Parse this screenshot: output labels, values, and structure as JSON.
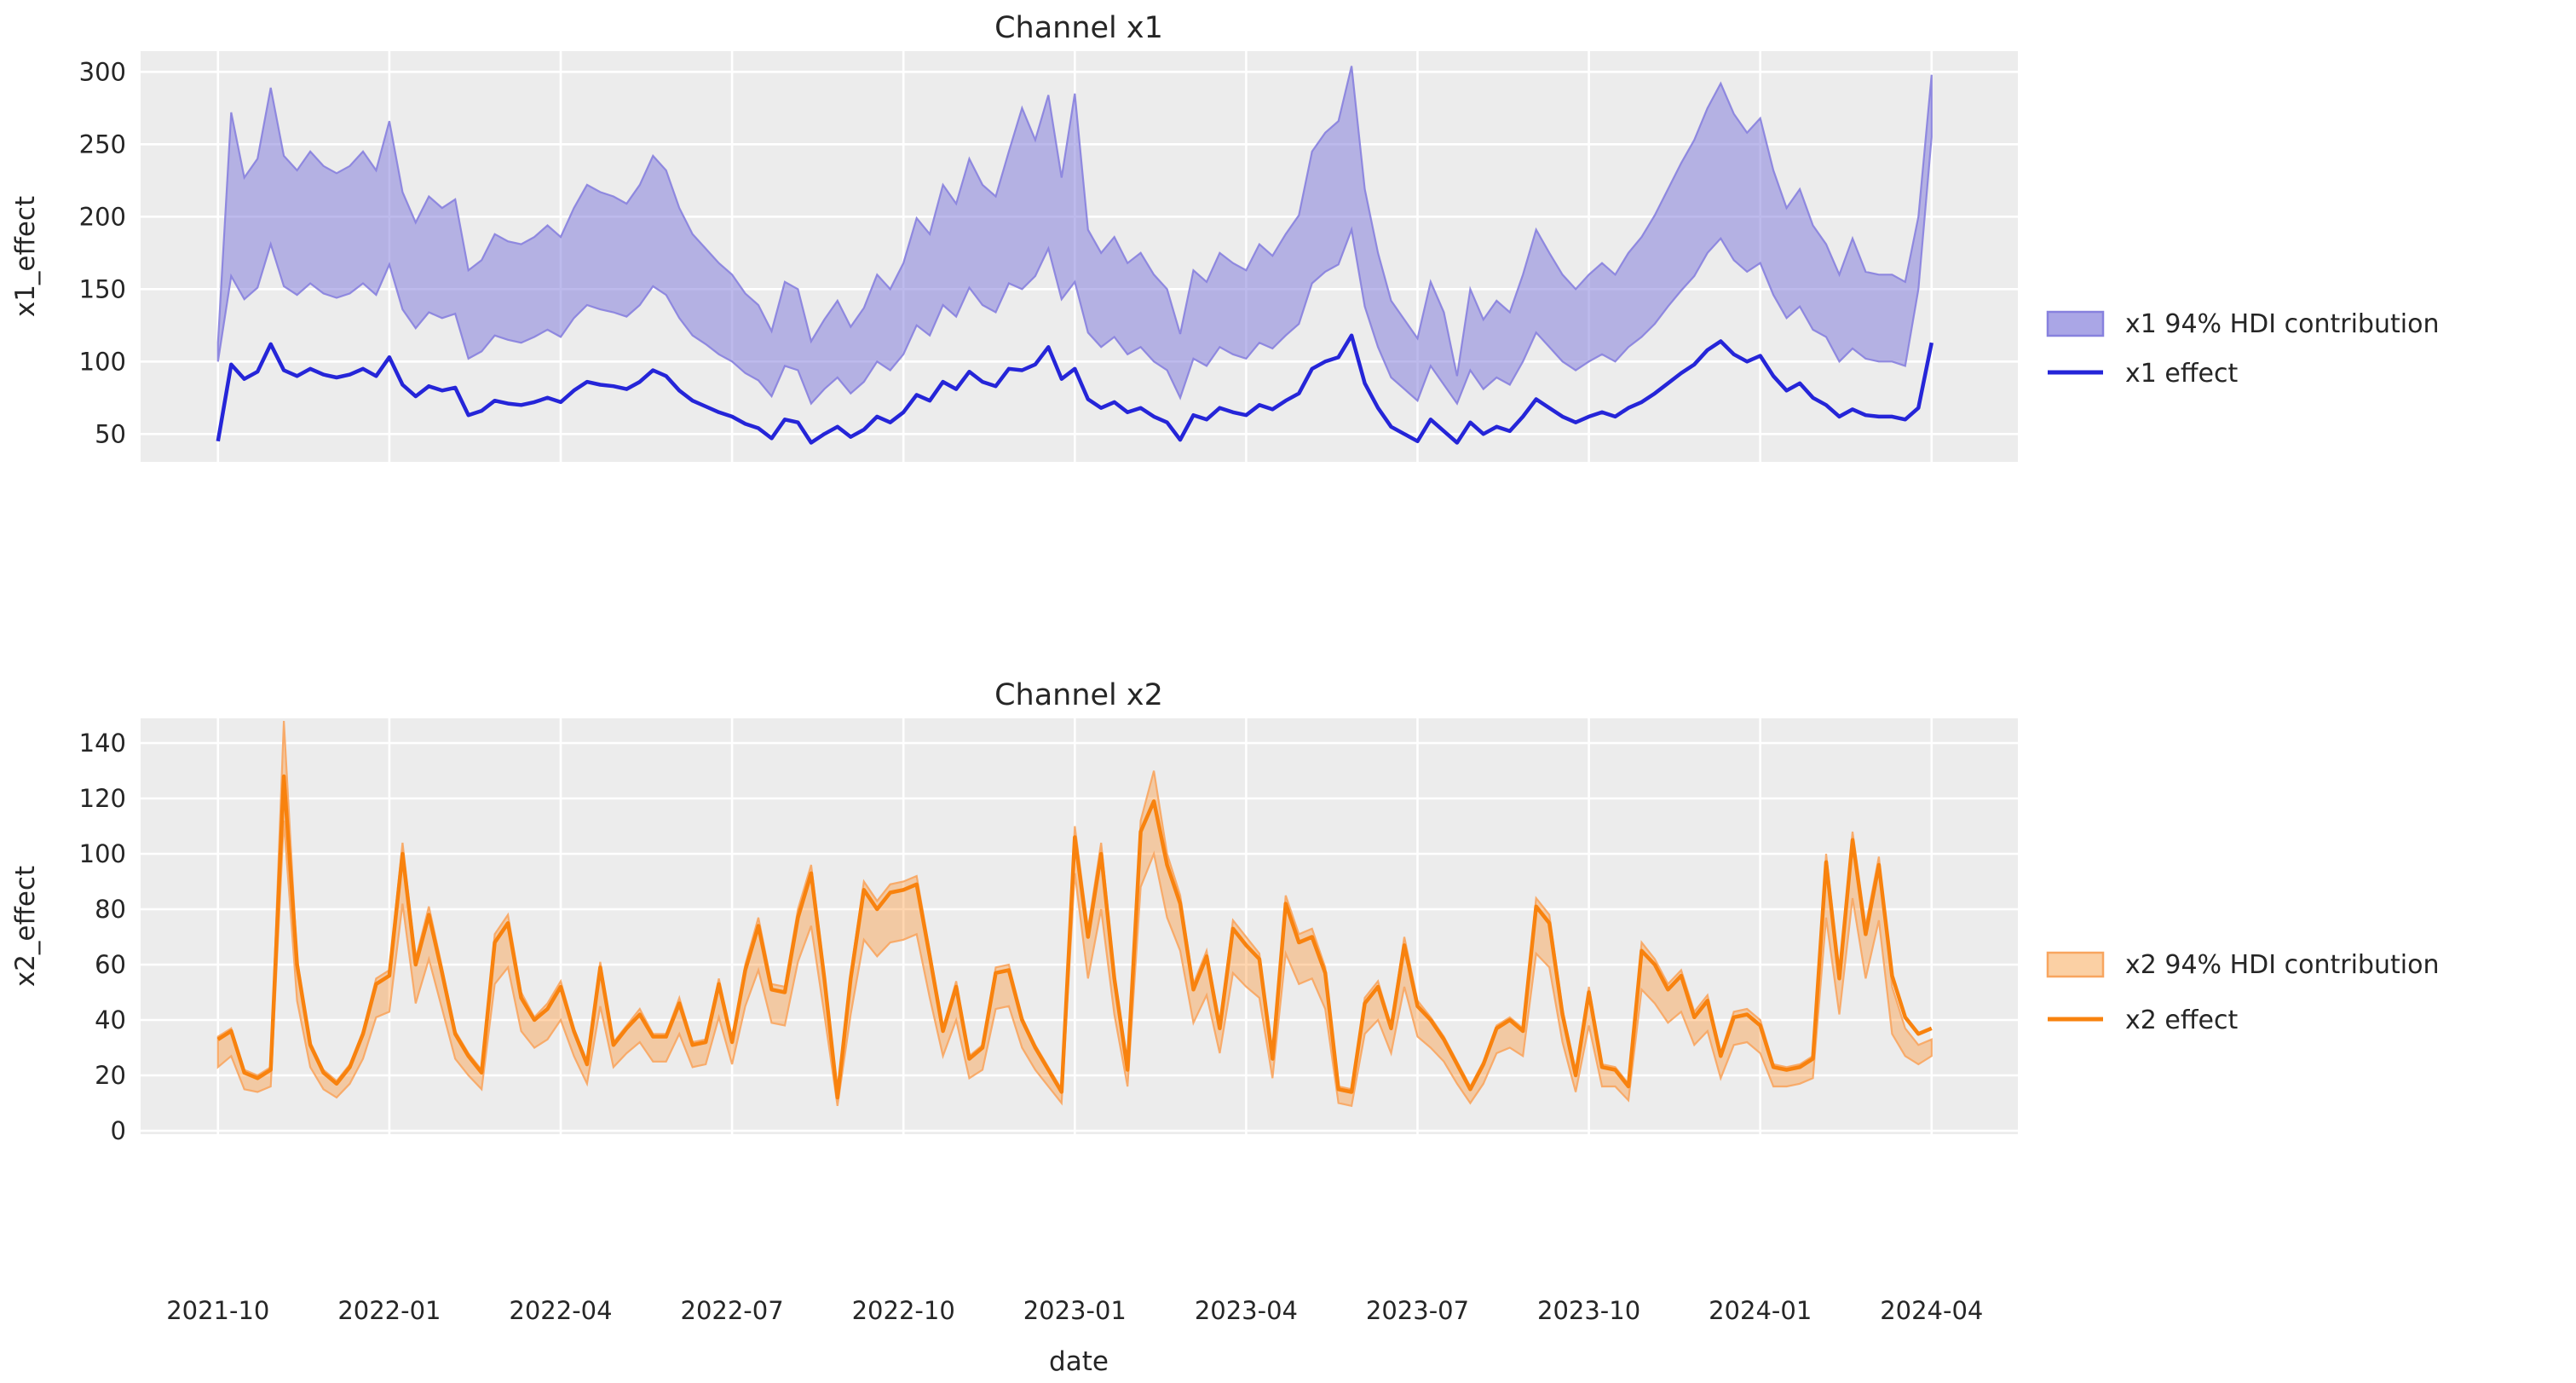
{
  "figure": {
    "background": "#ffffff",
    "axes_background": "#ececec",
    "grid_color": "#ffffff",
    "text_color": "#262626",
    "xlabel": "date"
  },
  "chart_data": [
    {
      "type": "line",
      "title": "Channel x1",
      "ylabel": "x1_effect",
      "xlabel": "date",
      "grid": true,
      "legend_position": "right-outside",
      "x": {
        "start": "2021-10-03",
        "step_days": 7,
        "n": 131
      },
      "x_tick_labels": [
        "2021-10",
        "2022-01",
        "2022-04",
        "2022-07",
        "2022-10",
        "2023-01",
        "2023-04",
        "2023-07",
        "2023-10",
        "2024-01",
        "2024-04"
      ],
      "yticks": [
        50,
        100,
        150,
        200,
        250,
        300
      ],
      "ylim": [
        31,
        314
      ],
      "series": [
        {
          "name": "x1 94% HDI contribution",
          "kind": "band",
          "fill_color": "#7c76d9",
          "fill_opacity": 0.5,
          "edge_color": "#8781de",
          "low": [
            100,
            159,
            143,
            151,
            181,
            152,
            146,
            154,
            147,
            144,
            147,
            154,
            146,
            167,
            136,
            123,
            134,
            130,
            133,
            102,
            107,
            118,
            115,
            113,
            117,
            122,
            117,
            130,
            139,
            136,
            134,
            131,
            139,
            152,
            146,
            130,
            118,
            112,
            105,
            100,
            92,
            87,
            76,
            97,
            94,
            71,
            81,
            89,
            78,
            86,
            100,
            94,
            105,
            125,
            118,
            139,
            131,
            151,
            139,
            134,
            154,
            150,
            159,
            178,
            143,
            155,
            120,
            110,
            117,
            105,
            110,
            100,
            94,
            75,
            102,
            97,
            110,
            105,
            102,
            113,
            109,
            118,
            126,
            154,
            162,
            167,
            191,
            138,
            110,
            89,
            81,
            73,
            97,
            84,
            71,
            94,
            81,
            89,
            84,
            100,
            120,
            110,
            100,
            94,
            100,
            105,
            100,
            110,
            117,
            126,
            138,
            149,
            159,
            175,
            185,
            170,
            162,
            168,
            146,
            130,
            138,
            122,
            117,
            100,
            109,
            102,
            100,
            100,
            97,
            150,
            255
          ],
          "high": [
            113,
            272,
            227,
            240,
            289,
            242,
            232,
            245,
            235,
            230,
            235,
            245,
            232,
            266,
            217,
            196,
            214,
            206,
            212,
            163,
            170,
            188,
            183,
            181,
            186,
            194,
            186,
            206,
            222,
            217,
            214,
            209,
            222,
            242,
            232,
            206,
            188,
            178,
            168,
            160,
            147,
            139,
            121,
            155,
            150,
            114,
            129,
            142,
            124,
            137,
            160,
            150,
            168,
            199,
            188,
            222,
            209,
            240,
            222,
            214,
            245,
            275,
            253,
            284,
            227,
            285,
            191,
            175,
            186,
            168,
            175,
            160,
            150,
            119,
            163,
            155,
            175,
            168,
            163,
            181,
            173,
            188,
            201,
            245,
            258,
            266,
            304,
            219,
            175,
            142,
            129,
            116,
            155,
            134,
            90,
            150,
            129,
            142,
            134,
            160,
            191,
            175,
            160,
            150,
            160,
            168,
            160,
            175,
            186,
            201,
            219,
            237,
            253,
            275,
            292,
            271,
            258,
            268,
            232,
            206,
            219,
            194,
            181,
            160,
            185,
            162,
            160,
            160,
            155,
            200,
            298
          ]
        },
        {
          "name": "x1 effect",
          "kind": "line",
          "color": "#2525d8",
          "values": [
            45,
            98,
            88,
            93,
            112,
            94,
            90,
            95,
            91,
            89,
            91,
            95,
            90,
            103,
            84,
            76,
            83,
            80,
            82,
            63,
            66,
            73,
            71,
            70,
            72,
            75,
            72,
            80,
            86,
            84,
            83,
            81,
            86,
            94,
            90,
            80,
            73,
            69,
            65,
            62,
            57,
            54,
            47,
            60,
            58,
            44,
            50,
            55,
            48,
            53,
            62,
            58,
            65,
            77,
            73,
            86,
            81,
            93,
            86,
            83,
            95,
            94,
            98,
            110,
            88,
            95,
            74,
            68,
            72,
            65,
            68,
            62,
            58,
            46,
            63,
            60,
            68,
            65,
            63,
            70,
            67,
            73,
            78,
            95,
            100,
            103,
            118,
            85,
            68,
            55,
            50,
            45,
            60,
            52,
            44,
            58,
            50,
            55,
            52,
            62,
            74,
            68,
            62,
            58,
            62,
            65,
            62,
            68,
            72,
            78,
            85,
            92,
            98,
            108,
            114,
            105,
            100,
            104,
            90,
            80,
            85,
            75,
            70,
            62,
            67,
            63,
            62,
            62,
            60,
            68,
            113
          ]
        }
      ]
    },
    {
      "type": "line",
      "title": "Channel x2",
      "ylabel": "x2_effect",
      "xlabel": "date",
      "grid": true,
      "legend_position": "right-outside",
      "x": {
        "start": "2021-10-03",
        "step_days": 7,
        "n": 131
      },
      "x_tick_labels": [
        "2021-10",
        "2022-01",
        "2022-04",
        "2022-07",
        "2022-10",
        "2023-01",
        "2023-04",
        "2023-07",
        "2023-10",
        "2024-01",
        "2024-04"
      ],
      "yticks": [
        0,
        20,
        40,
        60,
        80,
        100,
        120,
        140
      ],
      "ylim": [
        -1.5,
        149
      ],
      "series": [
        {
          "name": "x2 94% HDI contribution",
          "kind": "band",
          "fill_color": "#ff8a1e",
          "fill_opacity": 0.35,
          "edge_color": "#f8a55f",
          "low": [
            23,
            27,
            15,
            14,
            16,
            112,
            47,
            23,
            15,
            12,
            17,
            26,
            41,
            43,
            82,
            46,
            62,
            44,
            26,
            20,
            15,
            53,
            59,
            36,
            30,
            33,
            40,
            27,
            17,
            45,
            23,
            28,
            32,
            25,
            25,
            35,
            23,
            24,
            41,
            24,
            45,
            58,
            39,
            38,
            61,
            74,
            42,
            9,
            42,
            69,
            63,
            68,
            69,
            71,
            48,
            27,
            40,
            19,
            22,
            44,
            45,
            30,
            22,
            16,
            10,
            93,
            55,
            80,
            42,
            16,
            88,
            100,
            77,
            65,
            39,
            49,
            28,
            57,
            52,
            48,
            19,
            64,
            53,
            55,
            44,
            10,
            9,
            35,
            40,
            28,
            52,
            34,
            30,
            25,
            17,
            10,
            17,
            28,
            30,
            27,
            64,
            59,
            32,
            14,
            38,
            16,
            16,
            11,
            51,
            46,
            39,
            43,
            31,
            36,
            19,
            31,
            32,
            28,
            16,
            16,
            17,
            19,
            77,
            42,
            84,
            55,
            76,
            35,
            27,
            24,
            27
          ],
          "high": [
            34,
            37,
            22,
            20,
            23,
            148,
            62,
            32,
            22,
            18,
            24,
            36,
            55,
            58,
            104,
            62,
            81,
            59,
            36,
            28,
            22,
            71,
            78,
            50,
            41,
            46,
            54,
            37,
            25,
            61,
            32,
            38,
            44,
            35,
            35,
            48,
            32,
            33,
            55,
            33,
            60,
            77,
            53,
            52,
            80,
            96,
            57,
            13,
            57,
            90,
            83,
            89,
            90,
            92,
            65,
            37,
            54,
            27,
            31,
            59,
            60,
            41,
            31,
            23,
            15,
            110,
            73,
            104,
            57,
            23,
            112,
            130,
            100,
            85,
            53,
            65,
            38,
            76,
            70,
            64,
            27,
            85,
            71,
            73,
            59,
            16,
            15,
            48,
            54,
            38,
            70,
            47,
            41,
            34,
            25,
            16,
            25,
            38,
            41,
            37,
            84,
            78,
            44,
            21,
            52,
            24,
            23,
            17,
            68,
            62,
            53,
            58,
            43,
            49,
            28,
            43,
            44,
            40,
            24,
            23,
            24,
            27,
            100,
            57,
            108,
            74,
            99,
            52,
            37,
            31,
            33
          ]
        },
        {
          "name": "x2 effect",
          "kind": "line",
          "color": "#f8820e",
          "values": [
            33,
            36,
            21,
            19,
            22,
            128,
            60,
            31,
            21,
            17,
            23,
            35,
            53,
            56,
            100,
            60,
            78,
            57,
            35,
            27,
            21,
            68,
            75,
            48,
            40,
            44,
            52,
            36,
            24,
            59,
            31,
            37,
            42,
            34,
            34,
            46,
            31,
            32,
            53,
            32,
            58,
            74,
            51,
            50,
            77,
            93,
            55,
            12,
            55,
            87,
            80,
            86,
            87,
            89,
            63,
            36,
            52,
            26,
            30,
            57,
            58,
            40,
            30,
            22,
            14,
            106,
            70,
            100,
            55,
            22,
            108,
            119,
            96,
            82,
            51,
            63,
            37,
            73,
            67,
            62,
            26,
            82,
            68,
            70,
            57,
            15,
            14,
            46,
            52,
            37,
            67,
            45,
            40,
            33,
            24,
            15,
            24,
            37,
            40,
            36,
            81,
            75,
            42,
            20,
            50,
            23,
            22,
            16,
            65,
            60,
            51,
            56,
            41,
            47,
            27,
            41,
            42,
            38,
            23,
            22,
            23,
            26,
            97,
            55,
            105,
            71,
            96,
            56,
            41,
            35,
            37
          ]
        }
      ]
    }
  ]
}
